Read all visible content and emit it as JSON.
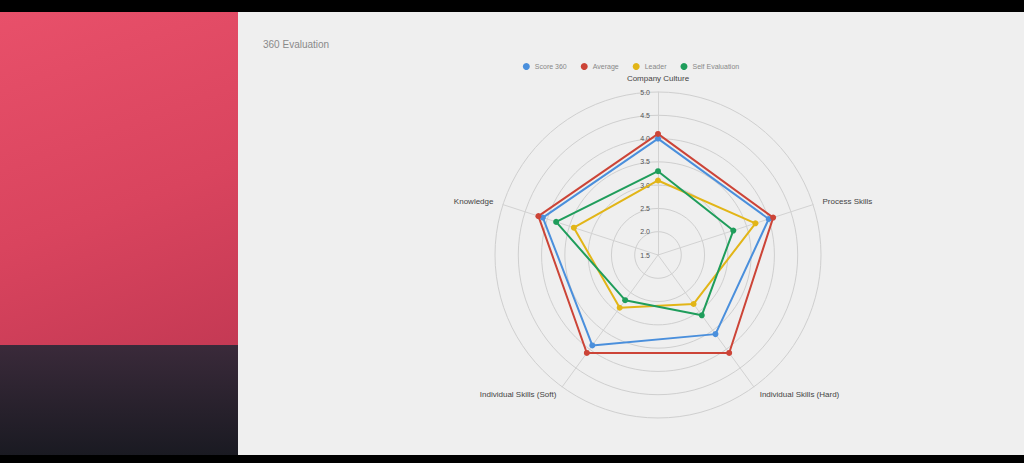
{
  "chart_data": {
    "type": "radar",
    "title": "360 Evaluation",
    "categories": [
      "Company Culture",
      "Knowledge",
      "Individual Skills (Soft)",
      "Individual Skills (Hard)",
      "Process Skills"
    ],
    "series": [
      {
        "name": "Score 360",
        "color": "#4a8fdc",
        "values": [
          4.0,
          4.1,
          3.9,
          3.6,
          4.0
        ]
      },
      {
        "name": "Average",
        "color": "#cc4437",
        "values": [
          4.1,
          4.2,
          4.1,
          4.1,
          4.1
        ]
      },
      {
        "name": "Leader",
        "color": "#e2b517",
        "values": [
          3.1,
          3.4,
          2.9,
          2.8,
          3.7
        ]
      },
      {
        "name": "Self Evaluation",
        "color": "#1f9d5b",
        "values": [
          3.3,
          3.8,
          2.7,
          3.1,
          3.2
        ]
      }
    ],
    "ylim": [
      1.5,
      5
    ],
    "yticks": [
      1.5,
      {
        "value": 2,
        "label": "2.0"
      },
      2.5,
      {
        "value": 3,
        "label": "3.0"
      },
      3.5,
      {
        "value": 4,
        "label": "4.0"
      },
      4.5,
      {
        "value": 5,
        "label": "5.0"
      }
    ],
    "grid": true,
    "legend": "top",
    "marker": "circle"
  }
}
